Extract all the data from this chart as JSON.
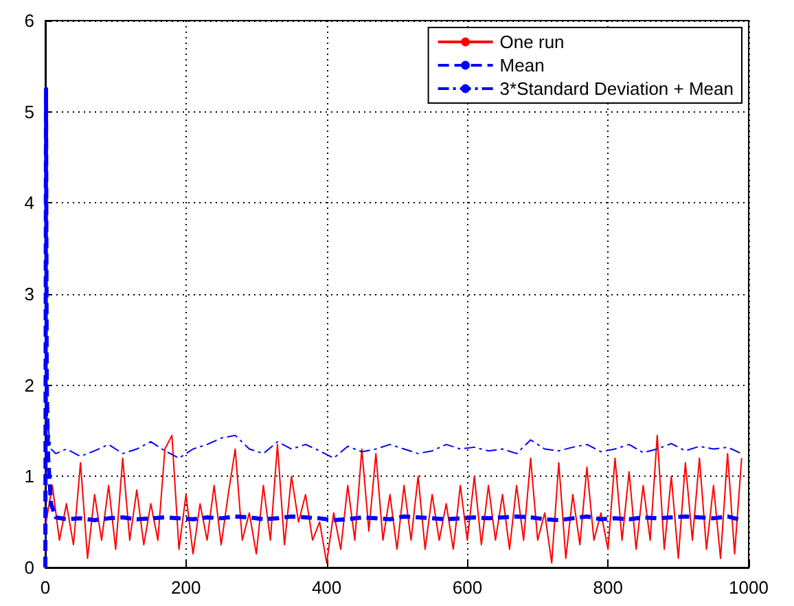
{
  "chart_data": {
    "type": "line",
    "xlim": [
      0,
      1000
    ],
    "ylim": [
      0,
      6
    ],
    "xticks": [
      0,
      200,
      400,
      600,
      800,
      1000
    ],
    "yticks": [
      0,
      1,
      2,
      3,
      4,
      5,
      6
    ],
    "grid": true,
    "legend": "top right",
    "marker": "none",
    "series": [
      {
        "name": "One run",
        "color": "#ff0000",
        "line_style": "solid",
        "x": [
          0,
          10,
          20,
          30,
          40,
          50,
          60,
          70,
          80,
          90,
          100,
          110,
          120,
          130,
          140,
          150,
          160,
          170,
          180,
          190,
          200,
          210,
          220,
          230,
          240,
          250,
          260,
          270,
          280,
          290,
          300,
          310,
          320,
          330,
          340,
          350,
          360,
          370,
          380,
          390,
          400,
          410,
          420,
          430,
          440,
          450,
          460,
          470,
          480,
          490,
          500,
          510,
          520,
          530,
          540,
          550,
          560,
          570,
          580,
          590,
          600,
          610,
          620,
          630,
          640,
          650,
          660,
          670,
          680,
          690,
          700,
          710,
          720,
          730,
          740,
          750,
          760,
          770,
          780,
          790,
          800,
          810,
          820,
          830,
          840,
          850,
          860,
          870,
          880,
          890,
          900,
          910,
          920,
          930,
          940,
          950,
          960,
          970,
          980,
          990
        ],
        "values": [
          0.45,
          0.9,
          0.3,
          0.7,
          0.25,
          1.15,
          0.1,
          0.8,
          0.3,
          0.9,
          0.2,
          1.2,
          0.3,
          0.85,
          0.25,
          0.7,
          0.3,
          1.3,
          1.45,
          0.2,
          0.8,
          0.15,
          0.7,
          0.3,
          0.9,
          0.25,
          0.8,
          1.3,
          0.3,
          0.6,
          0.15,
          0.9,
          0.3,
          1.35,
          0.25,
          1.0,
          0.5,
          0.8,
          0.3,
          0.5,
          0.05,
          0.6,
          0.2,
          0.9,
          0.3,
          1.3,
          0.4,
          1.25,
          0.3,
          0.8,
          0.2,
          0.9,
          0.3,
          1.0,
          0.2,
          0.8,
          0.3,
          0.7,
          0.2,
          0.9,
          0.3,
          1.0,
          0.25,
          0.9,
          0.3,
          0.8,
          0.2,
          0.9,
          0.3,
          1.2,
          0.3,
          0.6,
          0.05,
          1.15,
          0.1,
          0.8,
          0.25,
          1.1,
          0.3,
          0.6,
          0.2,
          1.2,
          0.3,
          1.05,
          0.2,
          0.9,
          0.3,
          1.45,
          0.2,
          1.0,
          0.1,
          1.15,
          0.3,
          1.2,
          0.2,
          0.9,
          0.1,
          1.25,
          0.15,
          1.2
        ]
      },
      {
        "name": "Mean",
        "color": "#0000ff",
        "line_style": "dashed",
        "x": [
          0,
          1,
          2,
          4,
          8,
          15,
          30,
          50,
          70,
          90,
          110,
          130,
          150,
          170,
          190,
          210,
          230,
          250,
          270,
          290,
          310,
          330,
          350,
          370,
          390,
          410,
          430,
          450,
          470,
          490,
          510,
          530,
          550,
          570,
          590,
          610,
          630,
          650,
          670,
          690,
          710,
          730,
          750,
          770,
          790,
          810,
          830,
          850,
          870,
          890,
          910,
          930,
          950,
          970,
          990
        ],
        "values": [
          0,
          5.25,
          2.0,
          1.2,
          0.7,
          0.55,
          0.53,
          0.54,
          0.52,
          0.54,
          0.55,
          0.53,
          0.54,
          0.55,
          0.54,
          0.53,
          0.55,
          0.54,
          0.56,
          0.55,
          0.53,
          0.54,
          0.56,
          0.55,
          0.54,
          0.52,
          0.53,
          0.55,
          0.54,
          0.53,
          0.56,
          0.55,
          0.54,
          0.53,
          0.54,
          0.55,
          0.54,
          0.55,
          0.56,
          0.55,
          0.53,
          0.52,
          0.54,
          0.56,
          0.53,
          0.54,
          0.53,
          0.55,
          0.54,
          0.55,
          0.56,
          0.55,
          0.54,
          0.56,
          0.52
        ]
      },
      {
        "name": "3*Standard Deviation + Mean",
        "color": "#0000ff",
        "line_style": "dashdot",
        "x": [
          0,
          1,
          3,
          8,
          15,
          30,
          50,
          70,
          90,
          110,
          130,
          150,
          170,
          190,
          210,
          230,
          250,
          270,
          290,
          310,
          330,
          350,
          370,
          390,
          410,
          430,
          450,
          470,
          490,
          510,
          530,
          550,
          570,
          590,
          610,
          630,
          650,
          670,
          690,
          710,
          730,
          750,
          770,
          790,
          810,
          830,
          850,
          870,
          890,
          910,
          930,
          950,
          970,
          990
        ],
        "values": [
          0,
          2.7,
          1.6,
          1.3,
          1.25,
          1.3,
          1.22,
          1.28,
          1.35,
          1.25,
          1.3,
          1.38,
          1.28,
          1.2,
          1.3,
          1.35,
          1.42,
          1.45,
          1.3,
          1.25,
          1.38,
          1.3,
          1.35,
          1.28,
          1.2,
          1.33,
          1.27,
          1.3,
          1.35,
          1.3,
          1.25,
          1.28,
          1.35,
          1.3,
          1.32,
          1.28,
          1.3,
          1.25,
          1.4,
          1.3,
          1.28,
          1.32,
          1.35,
          1.27,
          1.3,
          1.35,
          1.26,
          1.3,
          1.36,
          1.28,
          1.33,
          1.3,
          1.32,
          1.25
        ]
      }
    ]
  }
}
